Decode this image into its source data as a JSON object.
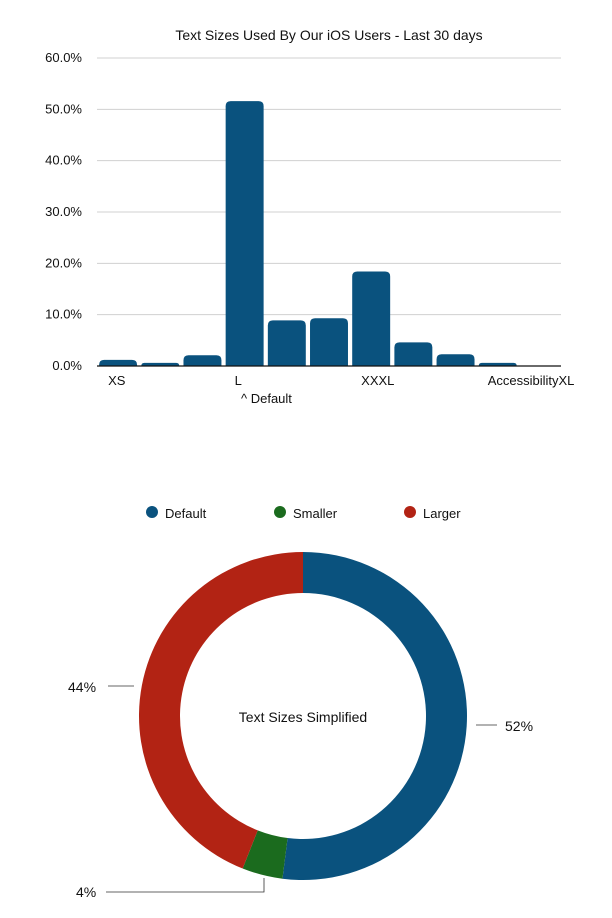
{
  "chart_data": [
    {
      "type": "bar",
      "title": "Text Sizes Used By Our iOS Users - Last 30 days",
      "categories": [
        "XS",
        "",
        "",
        "L",
        "",
        "",
        "XXXL",
        "",
        "",
        "AccessibilityXL",
        ""
      ],
      "values": [
        1.2,
        0.6,
        2.1,
        51.6,
        8.9,
        9.3,
        18.4,
        4.6,
        2.3,
        0.6,
        0.0
      ],
      "y_ticks": [
        "0.0%",
        "10.0%",
        "20.0%",
        "30.0%",
        "40.0%",
        "50.0%",
        "60.0%"
      ],
      "ylim": [
        0,
        60
      ],
      "grid": true,
      "bar_color": "#0a527e",
      "annotation": "^ Default"
    },
    {
      "type": "pie",
      "title": "Text Sizes Simplified",
      "legend_position": "top",
      "slices": [
        {
          "name": "Default",
          "value": 52,
          "label": "52%",
          "color": "#0a527e"
        },
        {
          "name": "Smaller",
          "value": 4,
          "label": "4%",
          "color": "#1b6b1e"
        },
        {
          "name": "Larger",
          "value": 44,
          "label": "44%",
          "color": "#b22314"
        }
      ]
    }
  ]
}
